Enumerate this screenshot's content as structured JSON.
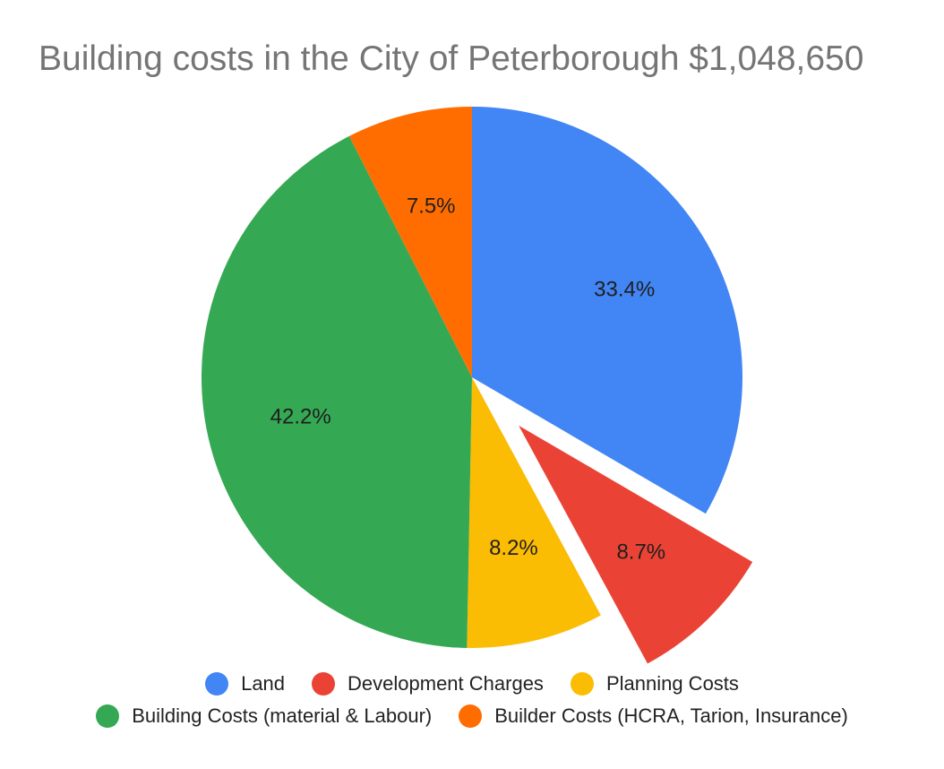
{
  "chart_data": {
    "type": "pie",
    "title": "Building costs in the City of Peterborough $1,048,650",
    "slices": [
      {
        "name": "Land",
        "value": 33.4,
        "label": "33.4%",
        "color": "#4285F4",
        "exploded": false
      },
      {
        "name": "Development Charges",
        "value": 8.7,
        "label": "8.7%",
        "color": "#EA4335",
        "exploded": true
      },
      {
        "name": "Planning Costs",
        "value": 8.2,
        "label": "8.2%",
        "color": "#FBBC04",
        "exploded": false
      },
      {
        "name": "Building Costs (material & Labour)",
        "value": 42.2,
        "label": "42.2%",
        "color": "#34A853",
        "exploded": false
      },
      {
        "name": "Builder Costs (HCRA, Tarion, Insurance)",
        "value": 7.5,
        "label": "7.5%",
        "color": "#FF6D01",
        "exploded": false
      }
    ],
    "legend_position": "bottom"
  }
}
